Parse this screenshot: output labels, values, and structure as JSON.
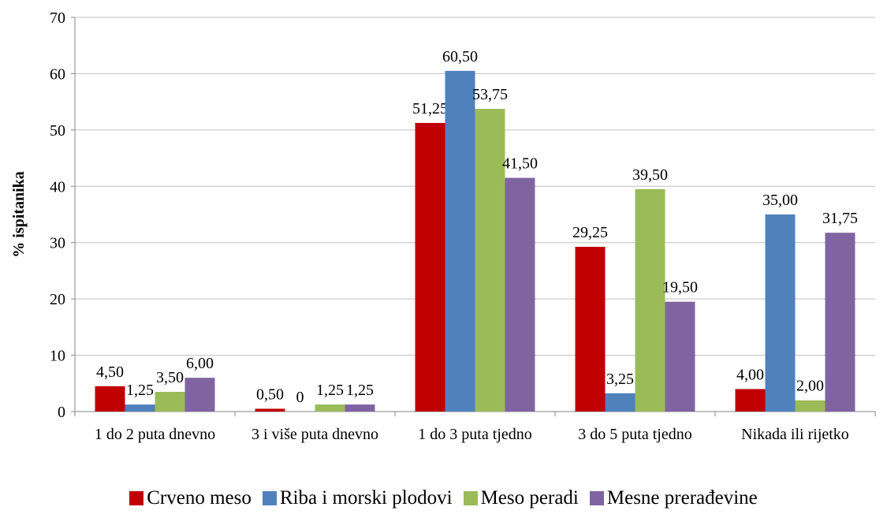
{
  "chart_data": {
    "type": "bar",
    "y_label": "% ispitanika",
    "categories": [
      "1 do 2 puta dnevno",
      "3 i više puta dnevno",
      "1 do 3 puta tjedno",
      "3 do 5 puta tjedno",
      "Nikada ili rijetko"
    ],
    "series": [
      {
        "name": "Crveno meso",
        "color": "#c00000",
        "values": [
          4.5,
          0.5,
          51.25,
          29.25,
          4.0
        ],
        "value_labels": [
          "4,50",
          "0,50",
          "51,25",
          "29,25",
          "4,00"
        ]
      },
      {
        "name": "Riba i morski plodovi",
        "color": "#4f81bd",
        "values": [
          1.25,
          0,
          60.5,
          3.25,
          35.0
        ],
        "value_labels": [
          "1,25",
          "0",
          "60,50",
          "3,25",
          "35,00"
        ]
      },
      {
        "name": "Meso peradi",
        "color": "#9bbb59",
        "values": [
          3.5,
          1.25,
          53.75,
          39.5,
          2.0
        ],
        "value_labels": [
          "3,50",
          "1,25",
          "53,75",
          "39,50",
          "2,00"
        ]
      },
      {
        "name": "Mesne prerađevine",
        "color": "#8064a2",
        "values": [
          6.0,
          1.25,
          41.5,
          19.5,
          31.75
        ],
        "value_labels": [
          "6,00",
          "1,25",
          "41,50",
          "19,50",
          "31,75"
        ]
      }
    ],
    "ylim": [
      0,
      70
    ],
    "yticks": [
      0,
      10,
      20,
      30,
      40,
      50,
      60,
      70
    ],
    "grid": true,
    "legend": "bottom"
  }
}
